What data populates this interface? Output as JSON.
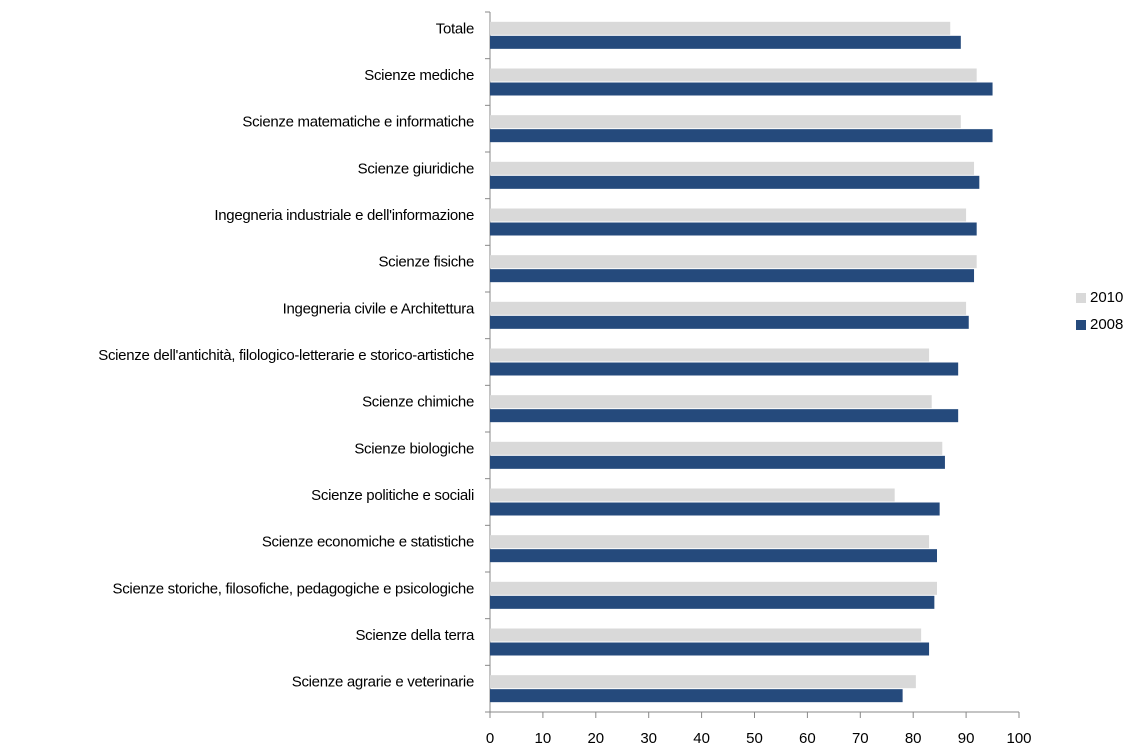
{
  "chart_data": {
    "type": "barh",
    "categories": [
      "Totale",
      "Scienze mediche",
      "Scienze matematiche e informatiche",
      "Scienze giuridiche",
      "Ingegneria industriale e dell'informazione",
      "Scienze fisiche",
      "Ingegneria civile e Architettura",
      "Scienze dell'antichità, filologico-letterarie e storico-artistiche",
      "Scienze chimiche",
      "Scienze biologiche",
      "Scienze politiche e sociali",
      "Scienze economiche e statistiche",
      "Scienze storiche, filosofiche, pedagogiche e psicologiche",
      "Scienze della terra",
      "Scienze agrarie e veterinarie"
    ],
    "series": [
      {
        "name": "2010",
        "color": "#d9d9d9",
        "values": [
          87,
          92,
          89,
          91.5,
          90,
          92,
          90,
          83,
          83.5,
          85.5,
          76.5,
          83,
          84.5,
          81.5,
          80.5
        ]
      },
      {
        "name": "2008",
        "color": "#254a7c",
        "values": [
          89,
          95,
          95,
          92.5,
          92,
          91.5,
          90.5,
          88.5,
          88.5,
          86,
          85,
          84.5,
          84,
          83,
          78
        ]
      }
    ],
    "xlim": [
      0,
      100
    ],
    "xticks": [
      0,
      10,
      20,
      30,
      40,
      50,
      60,
      70,
      80,
      90,
      100
    ],
    "legend": "right"
  }
}
